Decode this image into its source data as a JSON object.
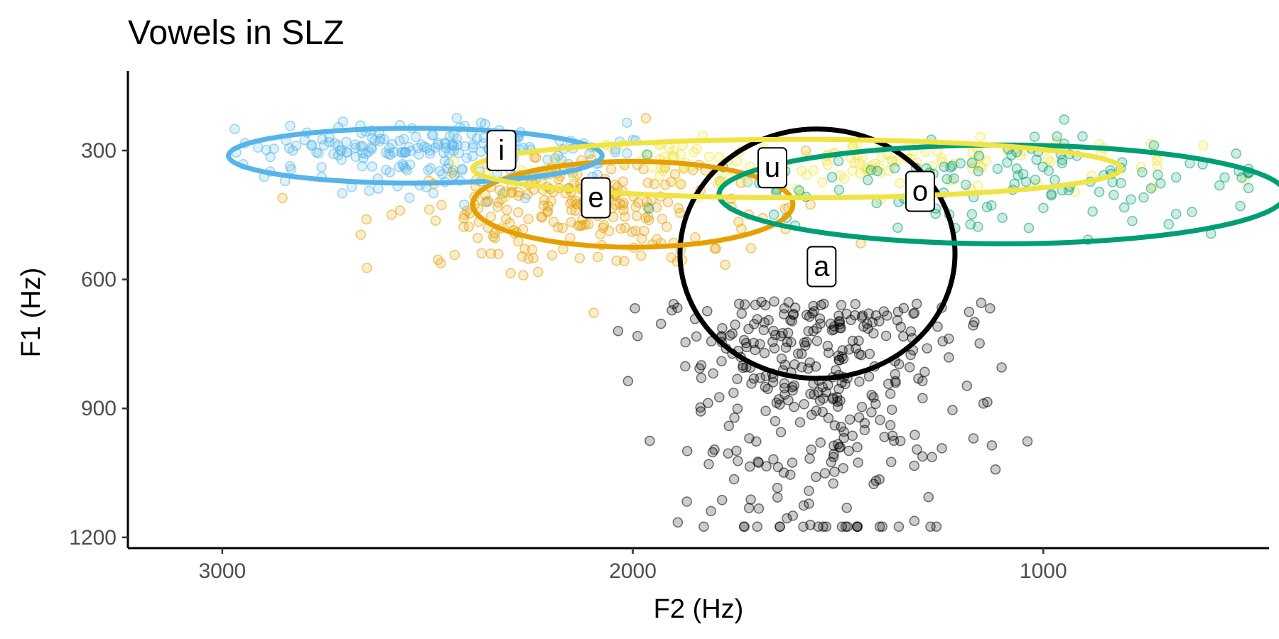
{
  "chart_data": {
    "type": "scatter",
    "title": "Vowels in SLZ",
    "xlabel": "F2 (Hz)",
    "ylabel": "F1 (Hz)",
    "x_reversed": true,
    "y_reversed": true,
    "xlim": [
      3230,
      450
    ],
    "ylim": [
      1225,
      115
    ],
    "x_ticks": [
      3000,
      2000,
      1000
    ],
    "y_ticks": [
      300,
      600,
      900,
      1200
    ],
    "grid": false,
    "legend": "none",
    "colors": {
      "a": "#000000",
      "e": "#E69F00",
      "i": "#56B4E9",
      "o": "#009E73",
      "u": "#F0E442"
    },
    "point_opacity": 0.2,
    "ellipse_stroke_width": 7,
    "series": [
      {
        "name": "a",
        "count": 360,
        "cx": 1550,
        "cy": 650,
        "sx": 170,
        "sy": 160
      },
      {
        "name": "e",
        "count": 240,
        "cx": 2100,
        "cy": 430,
        "sx": 230,
        "sy": 85
      },
      {
        "name": "i",
        "count": 220,
        "cx": 2500,
        "cy": 300,
        "sx": 230,
        "sy": 48
      },
      {
        "name": "o",
        "count": 130,
        "cx": 1100,
        "cy": 360,
        "sx": 330,
        "sy": 70
      },
      {
        "name": "u",
        "count": 150,
        "cx": 1500,
        "cy": 320,
        "sx": 400,
        "sy": 40
      }
    ],
    "ellipses": [
      {
        "name": "a",
        "cx": 1550,
        "cy": 540,
        "rx": 335,
        "ry": 290
      },
      {
        "name": "e",
        "cx": 2000,
        "cy": 425,
        "rx": 390,
        "ry": 100
      },
      {
        "name": "i",
        "cx": 2530,
        "cy": 312,
        "rx": 455,
        "ry": 64
      },
      {
        "name": "o",
        "cx": 1100,
        "cy": 402,
        "rx": 690,
        "ry": 115
      },
      {
        "name": "u",
        "cx": 1600,
        "cy": 342,
        "rx": 790,
        "ry": 68
      }
    ],
    "labels": [
      {
        "text": "a",
        "x": 1540,
        "y": 570
      },
      {
        "text": "e",
        "x": 2090,
        "y": 410
      },
      {
        "text": "i",
        "x": 2320,
        "y": 300
      },
      {
        "text": "o",
        "x": 1300,
        "y": 395
      },
      {
        "text": "u",
        "x": 1660,
        "y": 340
      }
    ]
  }
}
